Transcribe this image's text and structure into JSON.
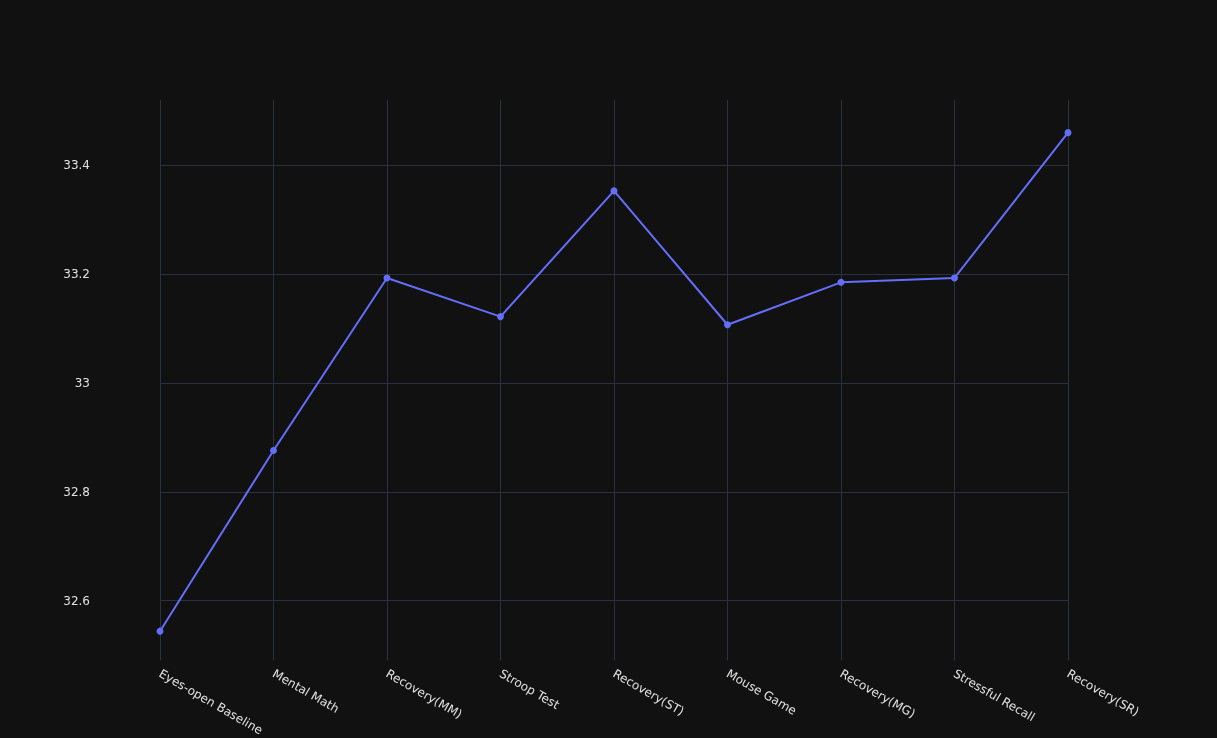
{
  "chart_data": {
    "type": "line",
    "categories": [
      "Eyes-open Baseline",
      "Mental Math",
      "Recovery(MM)",
      "Stroop Test",
      "Recovery(ST)",
      "Mouse Game",
      "Recovery(MG)",
      "Stressful Recall",
      "Recovery(SR)"
    ],
    "series": [
      {
        "color": "#636efa",
        "values": [
          32.544,
          32.876,
          33.193,
          33.122,
          33.353,
          33.107,
          33.185,
          33.193,
          33.46
        ]
      }
    ],
    "ylim": [
      32.49,
      33.52
    ],
    "yticks": [
      32.6,
      32.8,
      33,
      33.2,
      33.4
    ],
    "grid": true,
    "marker": "circle",
    "line_style": "solid"
  }
}
